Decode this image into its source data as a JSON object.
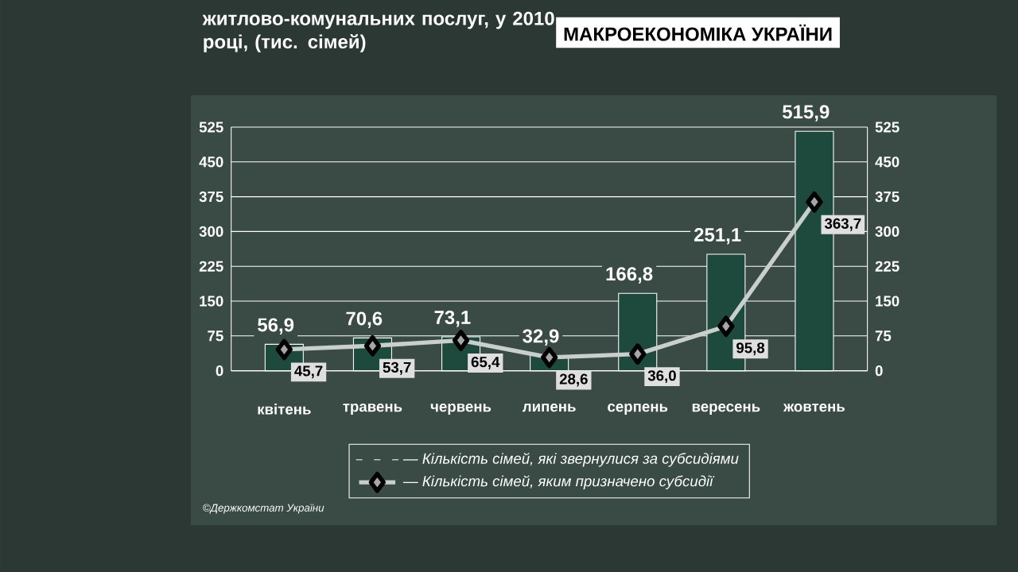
{
  "chart_data": {
    "type": "bar",
    "title": "житлово-комунальних послуг, у 2010 році, (тис. сімей)",
    "subtitle": "МАКРОЕКОНОМІКА УКРАЇНИ",
    "categories": [
      "квітень",
      "травень",
      "червень",
      "липень",
      "серпень",
      "вересень",
      "жовтень"
    ],
    "series": [
      {
        "name": "— Кількість сімей, які звернулися за субсидіями",
        "color": "#1e4a3e",
        "values": [
          56.9,
          70.6,
          73.1,
          32.9,
          166.8,
          251.1,
          515.9
        ],
        "value_labels": [
          "56,9",
          "70,6",
          "73,1",
          "32,9",
          "166,8",
          "251,1",
          "515,9"
        ]
      },
      {
        "name": "— Кількість сімей, яким призначено субсидії",
        "type": "line",
        "color": "#c8cfcc",
        "marker": "diamond",
        "values": [
          45.7,
          53.7,
          65.4,
          28.6,
          36.0,
          95.8,
          363.7
        ],
        "value_labels": [
          "45,7",
          "53,7",
          "65,4",
          "28,6",
          "36,0",
          "95,8",
          "363,7"
        ]
      }
    ],
    "ylim": [
      0,
      525
    ],
    "yticks": [
      0,
      75,
      150,
      225,
      300,
      375,
      450,
      525
    ],
    "y2lim": [
      0,
      525
    ],
    "y2ticks": [
      0,
      75,
      150,
      225,
      300,
      375,
      450,
      525
    ],
    "grid": "y",
    "legend": "bottom",
    "annotations": [
      "©Держкомстат України"
    ]
  }
}
